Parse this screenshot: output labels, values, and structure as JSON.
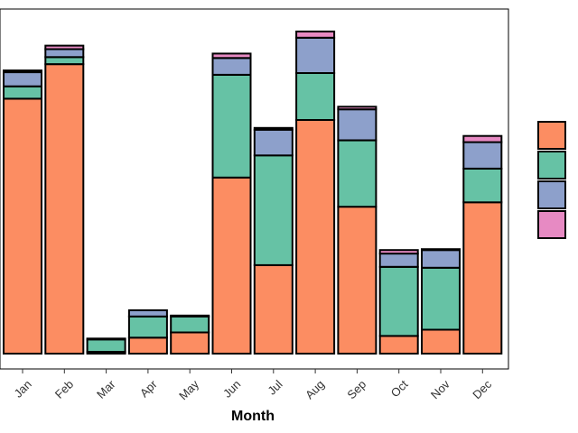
{
  "chart_data": {
    "type": "bar",
    "stacked": true,
    "title": "",
    "xlabel": "Month",
    "ylabel": "",
    "ylim": [
      0,
      370
    ],
    "grid": false,
    "legend_position": "right",
    "categories": [
      "Jan",
      "Feb",
      "Mar",
      "Apr",
      "May",
      "Jun",
      "Jul",
      "Aug",
      "Sep",
      "Oct",
      "Nov",
      "Dec"
    ],
    "series": [
      {
        "color": "#FC8D62",
        "values": [
          288,
          327,
          2,
          18,
          24,
          199,
          100,
          264,
          166,
          20,
          27,
          171
        ]
      },
      {
        "color": "#66C2A5",
        "values": [
          14,
          8,
          14,
          24,
          18,
          116,
          124,
          53,
          75,
          78,
          70,
          38
        ]
      },
      {
        "color": "#8DA0CB",
        "values": [
          16,
          9,
          0,
          7,
          1,
          19,
          29,
          40,
          35,
          15,
          20,
          30
        ]
      },
      {
        "color": "#E78AC3",
        "values": [
          2,
          4,
          1,
          0,
          0,
          5,
          2,
          7,
          3,
          4,
          1,
          7
        ]
      }
    ]
  }
}
